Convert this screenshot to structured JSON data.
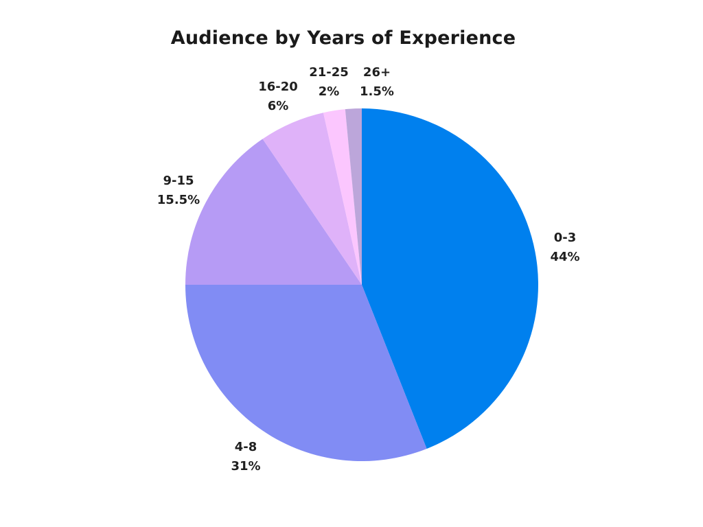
{
  "chart_data": {
    "type": "pie",
    "title": "Audience by Years of Experience",
    "slices": [
      {
        "label": "0-3",
        "value": 44,
        "value_label": "44%",
        "color": "#0080EE"
      },
      {
        "label": "4-8",
        "value": 31,
        "value_label": "31%",
        "color": "#818CF4"
      },
      {
        "label": "9-15",
        "value": 15.5,
        "value_label": "15.5%",
        "color": "#B69BF5"
      },
      {
        "label": "16-20",
        "value": 6,
        "value_label": "6%",
        "color": "#DFB2F9"
      },
      {
        "label": "21-25",
        "value": 2,
        "value_label": "2%",
        "color": "#FBC6FE"
      },
      {
        "label": "26+",
        "value": 1.5,
        "value_label": "1.5%",
        "color": "#BCA6DA"
      }
    ],
    "start_angle": "12 o'clock",
    "direction": "clockwise",
    "legend": "none"
  }
}
